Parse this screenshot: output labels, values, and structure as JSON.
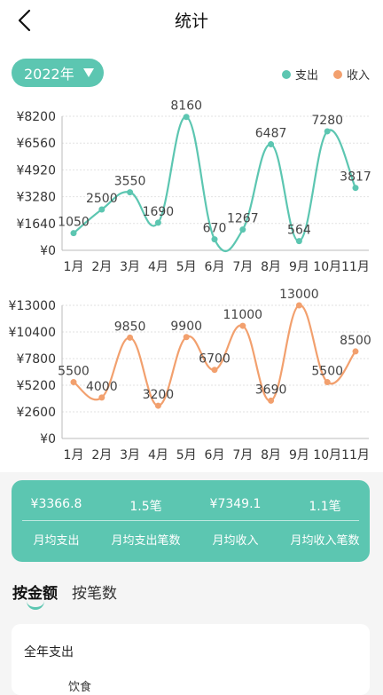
{
  "header": {
    "title": "统计"
  },
  "year_selector": {
    "label": "2022年"
  },
  "legend": [
    {
      "label": "支出",
      "color": "#5cc6b1"
    },
    {
      "label": "收入",
      "color": "#f2a06e"
    }
  ],
  "chart_data": [
    {
      "type": "line",
      "categories": [
        "1月",
        "2月",
        "3月",
        "4月",
        "5月",
        "6月",
        "7月",
        "8月",
        "9月",
        "10月",
        "11月"
      ],
      "series": [
        {
          "name": "支出",
          "values": [
            1050,
            2500,
            3550,
            1690,
            8160,
            670,
            1267,
            6487,
            564,
            7280,
            3817
          ],
          "color": "#5cc6b1"
        }
      ],
      "y_ticks": [
        "¥0",
        "¥1640",
        "¥3280",
        "¥4920",
        "¥6560",
        "¥8200"
      ],
      "ylim": [
        0,
        8200
      ],
      "grid": true
    },
    {
      "type": "line",
      "categories": [
        "1月",
        "2月",
        "3月",
        "4月",
        "5月",
        "6月",
        "7月",
        "8月",
        "9月",
        "10月",
        "11月"
      ],
      "series": [
        {
          "name": "收入",
          "values": [
            5500,
            4000,
            9850,
            3200,
            9900,
            6700,
            11000,
            3690,
            13000,
            5500,
            8500
          ],
          "color": "#f2a06e"
        }
      ],
      "y_ticks": [
        "¥0",
        "¥2600",
        "¥5200",
        "¥7800",
        "¥10400",
        "¥13000"
      ],
      "ylim": [
        0,
        13000
      ],
      "grid": true
    }
  ],
  "summary": {
    "values": [
      "¥3366.8",
      "1.5笔",
      "¥7349.1",
      "1.1笔"
    ],
    "labels": [
      "月均支出",
      "月均支出笔数",
      "月均收入",
      "月均收入笔数"
    ]
  },
  "tabs": [
    {
      "label": "按金额"
    },
    {
      "label": "按笔数"
    }
  ],
  "card": {
    "title": "全年支出",
    "partial_text": "饮食"
  }
}
